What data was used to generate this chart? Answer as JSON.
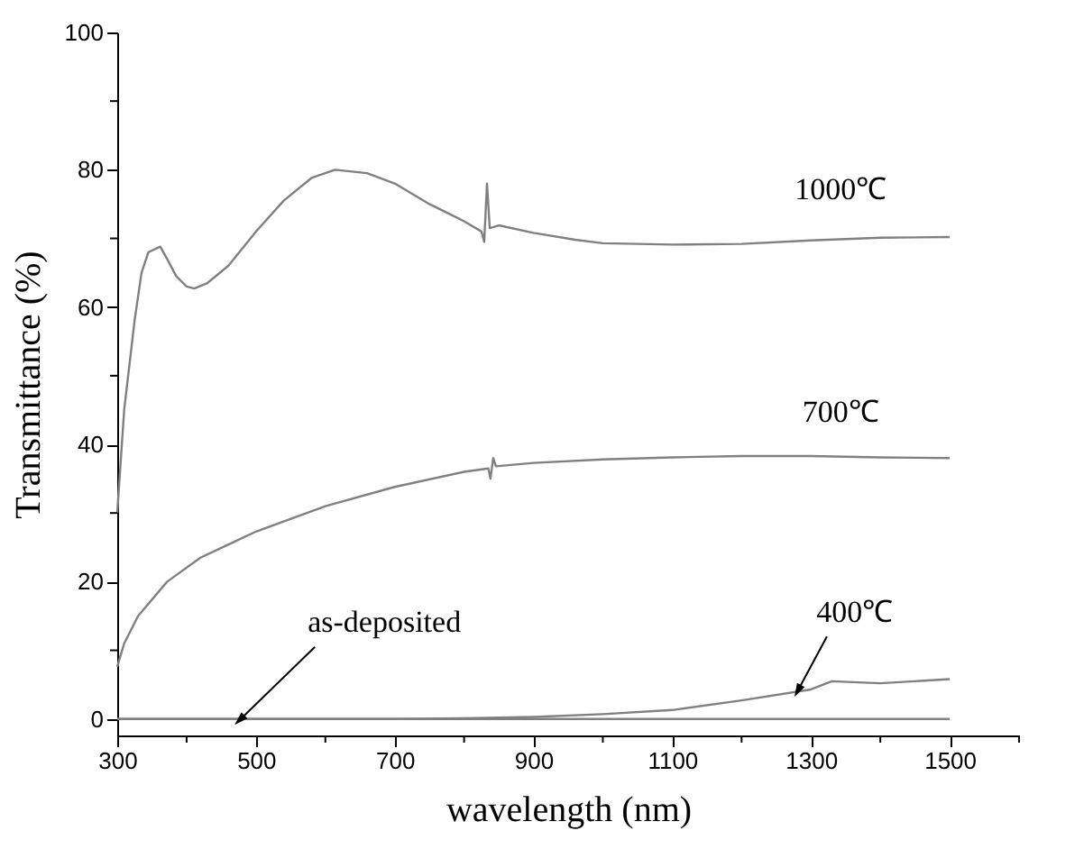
{
  "chart_data": {
    "type": "line",
    "xlabel": "wavelength (nm)",
    "ylabel": "Transmittance (%)",
    "xlim": [
      300,
      1600
    ],
    "ylim": [
      -2.4,
      100
    ],
    "xticks": [
      300,
      {
        "value": 400,
        "label": null
      },
      500,
      {
        "value": 600,
        "label": null
      },
      700,
      {
        "value": 800,
        "label": null
      },
      900,
      {
        "value": 1000,
        "label": null
      },
      1100,
      {
        "value": 1200,
        "label": null
      },
      1300,
      {
        "value": 1400,
        "label": null
      },
      1500,
      {
        "value": 1600,
        "label": null
      }
    ],
    "yticks": [
      0,
      {
        "value": 10,
        "label": null
      },
      20,
      {
        "value": 30,
        "label": null
      },
      40,
      {
        "value": 50,
        "label": null
      },
      60,
      {
        "value": 70,
        "label": null
      },
      80,
      {
        "value": 90,
        "label": null
      },
      100
    ],
    "grid": false,
    "marker": "none",
    "line_style": "solid",
    "series": [
      {
        "name": "1000℃",
        "color": "#808080",
        "x": [
          300,
          310,
          325,
          335,
          345,
          362,
          372,
          385,
          400,
          411,
          430,
          460,
          500,
          540,
          580,
          614,
          660,
          700,
          750,
          800,
          825,
          829,
          833,
          837,
          850,
          900,
          960,
          1000,
          1100,
          1200,
          1300,
          1400,
          1500
        ],
        "values": [
          30,
          45,
          58,
          65,
          68,
          68.8,
          67,
          64.5,
          63,
          62.7,
          63.5,
          66,
          71,
          75.5,
          78.8,
          80,
          79.5,
          78,
          75,
          72.5,
          71,
          69.5,
          78,
          71.5,
          71.9,
          70.8,
          69.8,
          69.3,
          69.1,
          69.2,
          69.7,
          70.1,
          70.2
        ]
      },
      {
        "name": "700℃",
        "color": "#808080",
        "x": [
          300,
          310,
          330,
          372,
          420,
          500,
          600,
          700,
          800,
          835,
          838,
          842,
          846,
          900,
          1000,
          1100,
          1200,
          1300,
          1400,
          1500
        ],
        "values": [
          7.6,
          11,
          15,
          20,
          23.5,
          27.3,
          31,
          33.8,
          36,
          36.5,
          35,
          38,
          36.8,
          37.3,
          37.8,
          38.1,
          38.3,
          38.3,
          38.1,
          38
        ]
      },
      {
        "color": "#808080",
        "x": [
          300,
          500,
          700,
          800,
          900,
          1000,
          1100,
          1200,
          1300,
          1330,
          1400,
          1500
        ],
        "values": [
          0,
          0,
          0,
          0.1,
          0.3,
          0.7,
          1.3,
          2.7,
          4.3,
          5.5,
          5.2,
          5.8
        ]
      },
      {
        "color": "#808080",
        "x": [
          300,
          500,
          700,
          900,
          1100,
          1300,
          1500
        ],
        "values": [
          0,
          0,
          0,
          0,
          0,
          0,
          0
        ]
      }
    ],
    "annotations": [
      {
        "text": "400℃",
        "x": 1282,
        "y": 4.3
      },
      {
        "text": "as-deposited",
        "x": 478,
        "y": 0
      }
    ]
  }
}
